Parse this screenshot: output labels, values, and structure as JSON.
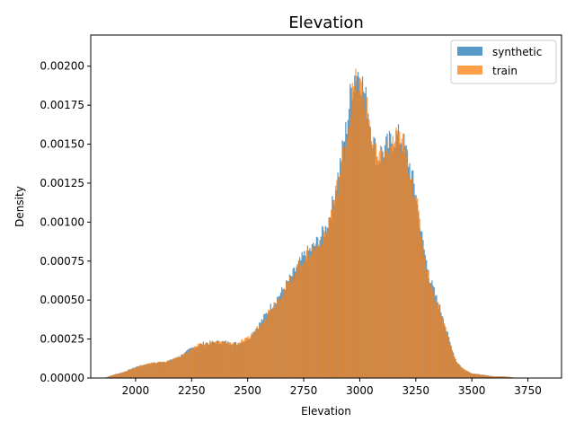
{
  "chart_data": {
    "type": "bar",
    "title": "Elevation",
    "xlabel": "Elevation",
    "ylabel": "Density",
    "xlim": [
      1800,
      3900
    ],
    "ylim": [
      0,
      0.0022
    ],
    "xticks": [
      2000,
      2250,
      2500,
      2750,
      3000,
      3250,
      3500,
      3750
    ],
    "xtick_labels": [
      "2000",
      "2250",
      "2500",
      "2750",
      "3000",
      "3250",
      "3500",
      "3750"
    ],
    "yticks": [
      0,
      0.00025,
      0.0005,
      0.00075,
      0.001,
      0.00125,
      0.0015,
      0.00175,
      0.002
    ],
    "ytick_labels": [
      "0.00000",
      "0.00025",
      "0.00050",
      "0.00075",
      "0.00100",
      "0.00125",
      "0.00150",
      "0.00175",
      "0.00200"
    ],
    "grid": false,
    "legend_position": "top-right",
    "colors": {
      "synthetic": "#1f77b4",
      "train": "#ff7f0e"
    },
    "series": [
      {
        "name": "synthetic",
        "x": [
          1860,
          1900,
          1950,
          2000,
          2050,
          2100,
          2150,
          2200,
          2250,
          2300,
          2350,
          2400,
          2450,
          2500,
          2550,
          2600,
          2650,
          2700,
          2750,
          2800,
          2850,
          2880,
          2910,
          2940,
          2960,
          2980,
          3000,
          3020,
          3040,
          3060,
          3080,
          3100,
          3130,
          3160,
          3190,
          3220,
          3250,
          3280,
          3310,
          3340,
          3370,
          3400,
          3430,
          3460,
          3500,
          3550,
          3600,
          3650,
          3700,
          3750,
          3800,
          3850
        ],
        "y": [
          0.0,
          2e-05,
          4e-05,
          7e-05,
          9e-05,
          0.0001,
          0.00011,
          0.00014,
          0.00019,
          0.00022,
          0.00023,
          0.00023,
          0.00022,
          0.00025,
          0.00034,
          0.00045,
          0.00055,
          0.00066,
          0.00078,
          0.00085,
          0.00096,
          0.00112,
          0.00135,
          0.0016,
          0.00183,
          0.00196,
          0.00196,
          0.00183,
          0.0017,
          0.00152,
          0.0014,
          0.00145,
          0.0015,
          0.00155,
          0.00153,
          0.00138,
          0.00118,
          0.00088,
          0.00065,
          0.00052,
          0.0004,
          0.00024,
          0.00011,
          6e-05,
          3e-05,
          2e-05,
          1e-05,
          1e-05,
          0.0,
          0.0,
          0.0,
          0.0
        ]
      },
      {
        "name": "train",
        "x": [
          1860,
          1900,
          1950,
          2000,
          2050,
          2100,
          2150,
          2200,
          2250,
          2300,
          2350,
          2400,
          2450,
          2500,
          2550,
          2600,
          2650,
          2700,
          2750,
          2800,
          2850,
          2880,
          2910,
          2940,
          2960,
          2980,
          3000,
          3020,
          3040,
          3060,
          3080,
          3100,
          3130,
          3160,
          3190,
          3220,
          3250,
          3280,
          3310,
          3340,
          3370,
          3400,
          3430,
          3460,
          3500,
          3550,
          3600,
          3650,
          3700,
          3750,
          3800,
          3850
        ],
        "y": [
          0.0,
          2e-05,
          4e-05,
          7e-05,
          9e-05,
          0.0001,
          0.00011,
          0.00014,
          0.00019,
          0.00022,
          0.00023,
          0.00023,
          0.00022,
          0.00025,
          0.00033,
          0.00044,
          0.00054,
          0.00065,
          0.00077,
          0.00084,
          0.00094,
          0.0011,
          0.0013,
          0.00154,
          0.00176,
          0.00188,
          0.00188,
          0.00178,
          0.00167,
          0.0015,
          0.00138,
          0.00143,
          0.00148,
          0.00153,
          0.00151,
          0.00136,
          0.00116,
          0.00087,
          0.00064,
          0.00051,
          0.00039,
          0.00023,
          0.00011,
          6e-05,
          3e-05,
          2e-05,
          1e-05,
          1e-05,
          0.0,
          0.0,
          0.0,
          0.0
        ]
      }
    ]
  }
}
